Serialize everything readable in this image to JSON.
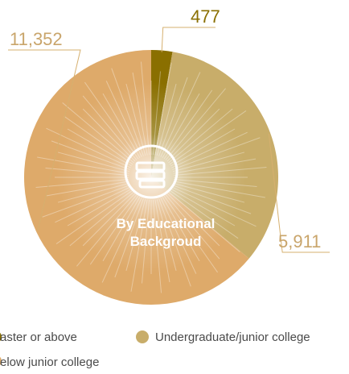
{
  "chart_data": {
    "type": "pie",
    "title": "By Educational Backgroud",
    "title_lines": [
      "By Educational",
      "Backgroud"
    ],
    "slices": [
      {
        "label": "aster or above",
        "value": 477,
        "display": "477",
        "color": "#8a6f00"
      },
      {
        "label": "Undergraduate/junior college",
        "value": 5911,
        "display": "5,911",
        "color": "#c8ad6a"
      },
      {
        "label": "elow junior college",
        "value": 11352,
        "display": "11,352",
        "color": "#deaa6a"
      }
    ],
    "legend_placement": "bottom",
    "icon": "books-icon",
    "colors": {
      "leader": "#d6b06f",
      "center_icon": "#ffffff",
      "label_text": "#c9a56b"
    }
  }
}
